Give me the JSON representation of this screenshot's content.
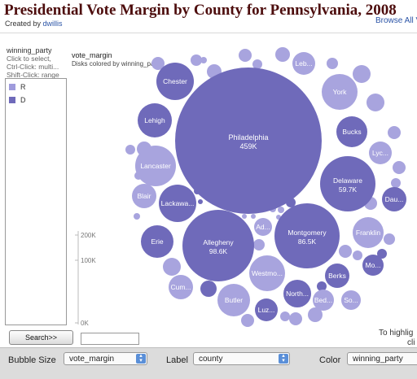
{
  "header": {
    "title": "Presidential Vote Margin by County for Pennsylvania, 2008",
    "created_prefix": "Created by",
    "author": "dwillis",
    "browse_link": "Browse All V"
  },
  "filter_panel": {
    "field": "winning_party",
    "hint_1": "Click to select,",
    "hint_2": "Ctrl-Click: multi...",
    "hint_3": "Shift-Click: range",
    "items": [
      {
        "label": "R",
        "color": "#9f9bdc"
      },
      {
        "label": "D",
        "color": "#6f6aba"
      }
    ],
    "search_button": "Search>>",
    "search_value": ""
  },
  "chart_data": {
    "type": "bubble",
    "title": "vote_margin",
    "subtitle": "Disks colored by winning_party",
    "size_axis_ticks": [
      "200K",
      "100K",
      "0K"
    ],
    "size_axis_values": [
      200000,
      100000,
      0
    ],
    "colors": {
      "R": "#a8a4de",
      "D": "#6f6aba"
    },
    "labeled_bubbles": [
      {
        "label": "Philadelphia",
        "value_label": "459K",
        "value": 459000,
        "party": "D"
      },
      {
        "label": "Montgomery",
        "value_label": "86.5K",
        "value": 86500,
        "party": "D"
      },
      {
        "label": "Allegheny",
        "value_label": "98.6K",
        "value": 98600,
        "party": "D"
      },
      {
        "label": "Delaware",
        "value_label": "59.7K",
        "value": 59700,
        "party": "D"
      },
      {
        "label": "Chester",
        "party": "D"
      },
      {
        "label": "Leb...",
        "party": "R"
      },
      {
        "label": "York",
        "party": "R"
      },
      {
        "label": "Lehigh",
        "party": "D"
      },
      {
        "label": "Bucks",
        "party": "D"
      },
      {
        "label": "Lyc...",
        "party": "R"
      },
      {
        "label": "Lancaster",
        "party": "R"
      },
      {
        "label": "Blair",
        "party": "R"
      },
      {
        "label": "Lackawa...",
        "party": "D"
      },
      {
        "label": "Dau...",
        "party": "D"
      },
      {
        "label": "Erie",
        "party": "D"
      },
      {
        "label": "Ad...",
        "party": "R"
      },
      {
        "label": "Franklin",
        "party": "R"
      },
      {
        "label": "Westmo...",
        "party": "R"
      },
      {
        "label": "Mo...",
        "party": "D"
      },
      {
        "label": "Berks",
        "party": "D"
      },
      {
        "label": "Cum...",
        "party": "R"
      },
      {
        "label": "Butler",
        "party": "R"
      },
      {
        "label": "North...",
        "party": "D"
      },
      {
        "label": "Bed...",
        "party": "R"
      },
      {
        "label": "So...",
        "party": "R"
      },
      {
        "label": "Luz...",
        "party": "D"
      }
    ]
  },
  "footer_hint_1": "To highlig",
  "footer_hint_2": "cli",
  "toolbar": {
    "bubble_size_label": "Bubble Size",
    "bubble_size_value": "vote_margin",
    "label_label": "Label",
    "label_value": "county",
    "color_label": "Color",
    "color_value": "winning_party"
  }
}
